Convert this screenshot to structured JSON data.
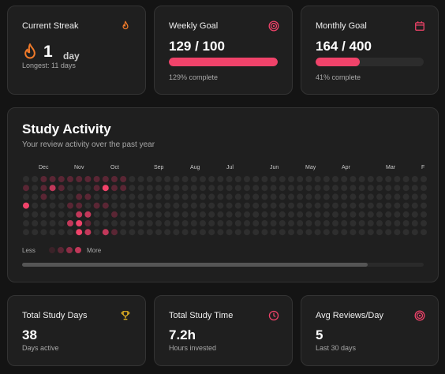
{
  "streak": {
    "title": "Current Streak",
    "value": "1",
    "unit": "day",
    "longest": "Longest: 11 days",
    "icon": "flame-icon",
    "accent": "#f07a2a"
  },
  "weekly": {
    "title": "Weekly Goal",
    "value": "129 / 100",
    "progress": 1.0,
    "caption": "129% complete",
    "icon": "target-icon",
    "accent": "#f0436a"
  },
  "monthly": {
    "title": "Monthly Goal",
    "value": "164 / 400",
    "progress": 0.41,
    "caption": "41% complete",
    "icon": "calendar-icon",
    "accent": "#f0436a"
  },
  "activity": {
    "title": "Study Activity",
    "subtitle": "Your review activity over the past year",
    "months": [
      "Dec",
      "Nov",
      "Oct",
      "Sep",
      "Aug",
      "Jul",
      "Jun",
      "May",
      "Apr",
      "Mar",
      "F"
    ],
    "legend_less": "Less",
    "legend_more": "More",
    "weeks": 46,
    "days": 7,
    "active_cells": [
      [
        0,
        1,
        1
      ],
      [
        2,
        0,
        1
      ],
      [
        2,
        1,
        1
      ],
      [
        2,
        2,
        1
      ],
      [
        3,
        0,
        1
      ],
      [
        3,
        1,
        2
      ],
      [
        4,
        0,
        1
      ],
      [
        4,
        1,
        1
      ],
      [
        5,
        0,
        1
      ],
      [
        5,
        3,
        1
      ],
      [
        5,
        5,
        2
      ],
      [
        6,
        0,
        1
      ],
      [
        6,
        2,
        1
      ],
      [
        6,
        3,
        1
      ],
      [
        6,
        4,
        2
      ],
      [
        6,
        5,
        3
      ],
      [
        6,
        6,
        3
      ],
      [
        7,
        0,
        1
      ],
      [
        7,
        2,
        1
      ],
      [
        7,
        4,
        2
      ],
      [
        7,
        5,
        1
      ],
      [
        7,
        6,
        2
      ],
      [
        8,
        0,
        1
      ],
      [
        8,
        1,
        1
      ],
      [
        8,
        3,
        1
      ],
      [
        9,
        0,
        1
      ],
      [
        9,
        1,
        3
      ],
      [
        9,
        3,
        1
      ],
      [
        9,
        6,
        2
      ],
      [
        10,
        0,
        1
      ],
      [
        10,
        1,
        1
      ],
      [
        10,
        4,
        1
      ],
      [
        10,
        6,
        1
      ],
      [
        11,
        0,
        1
      ],
      [
        11,
        1,
        1
      ],
      [
        0,
        3,
        3
      ]
    ],
    "level_colors": [
      "#2e2e2e",
      "#5a2634",
      "#c2385a",
      "#f0436a"
    ],
    "scroll_position": 0.86
  },
  "stats": [
    {
      "title": "Total Study Days",
      "value": "38",
      "caption": "Days active",
      "icon": "trophy-icon",
      "accent": "#e6b422"
    },
    {
      "title": "Total Study Time",
      "value": "7.2h",
      "caption": "Hours invested",
      "icon": "clock-icon",
      "accent": "#f0436a"
    },
    {
      "title": "Avg Reviews/Day",
      "value": "5",
      "caption": "Last 30 days",
      "icon": "target-icon",
      "accent": "#f0436a"
    }
  ]
}
